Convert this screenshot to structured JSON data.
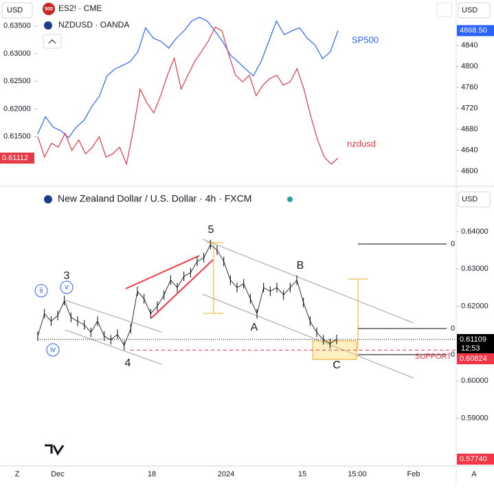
{
  "toolbar": {
    "top_left_currency": "USD",
    "top_right_currency": "USD",
    "bottom_right_currency": "USD",
    "bottom_left": "Z",
    "bottom_right": "A"
  },
  "chart_data": [
    {
      "type": "line",
      "legend": [
        {
          "badge": "500",
          "label": "ES2! · CME"
        },
        {
          "label": "NZDUSD · OANDA"
        }
      ],
      "series": [
        {
          "name": "SP500",
          "color": "#2962ff",
          "axis": "y2",
          "last": {
            "value": 4868.5,
            "label": "4868.50"
          },
          "values": [
            4671,
            4704,
            4684,
            4677,
            4664,
            4684,
            4697,
            4723,
            4743,
            4782,
            4795,
            4802,
            4809,
            4828,
            4874,
            4854,
            4848,
            4835,
            4854,
            4868,
            4887,
            4894,
            4887,
            4868,
            4848,
            4822,
            4809,
            4795,
            4782,
            4809,
            4848,
            4887,
            4861,
            4868,
            4874,
            4854,
            4841,
            4815,
            4828,
            4868.5
          ]
        },
        {
          "name": "nzdusd",
          "color": "#e53945",
          "axis": "y",
          "last": {
            "value": 0.61112,
            "label": "0.61112"
          },
          "values": [
            0.615,
            0.6113,
            0.6138,
            0.6131,
            0.6156,
            0.6125,
            0.6144,
            0.6119,
            0.6131,
            0.615,
            0.6113,
            0.6119,
            0.6131,
            0.61,
            0.6162,
            0.6236,
            0.6211,
            0.6193,
            0.6224,
            0.6261,
            0.6292,
            0.6236,
            0.6261,
            0.6286,
            0.6304,
            0.6323,
            0.6348,
            0.6341,
            0.6298,
            0.6261,
            0.6249,
            0.6261,
            0.6224,
            0.6243,
            0.6255,
            0.6261,
            0.6243,
            0.6249,
            0.6273,
            0.6236,
            0.6187,
            0.6144,
            0.6113,
            0.61,
            0.61112
          ]
        }
      ],
      "ylim": [
        0.6064,
        0.6397
      ],
      "yticks": [
        {
          "value": 0.635,
          "label": "0.63500"
        },
        {
          "value": 0.63,
          "label": "0.63000"
        },
        {
          "value": 0.625,
          "label": "0.62500"
        },
        {
          "value": 0.62,
          "label": "0.62000"
        },
        {
          "value": 0.615,
          "label": "0.61500"
        }
      ],
      "y2lim": [
        4575,
        4927
      ],
      "y2ticks": [
        4840,
        4800,
        4760,
        4720,
        4680,
        4640,
        4600
      ]
    },
    {
      "type": "bar-line",
      "title": "New Zealand Dollar / U.S. Dollar · 4h · FXCM",
      "color": "#000000",
      "values": [
        0.612,
        0.618,
        0.616,
        0.6175,
        0.6215,
        0.617,
        0.616,
        0.615,
        0.613,
        0.616,
        0.612,
        0.611,
        0.6125,
        0.6095,
        0.614,
        0.624,
        0.622,
        0.618,
        0.62,
        0.623,
        0.627,
        0.625,
        0.628,
        0.629,
        0.632,
        0.633,
        0.6365,
        0.635,
        0.632,
        0.627,
        0.625,
        0.626,
        0.622,
        0.618,
        0.625,
        0.624,
        0.625,
        0.623,
        0.625,
        0.627,
        0.621,
        0.616,
        0.613,
        0.611,
        0.61,
        0.6111
      ],
      "ylim": [
        0.5772,
        0.6514
      ],
      "yticks": [
        {
          "value": 0.64,
          "label": "0.64000"
        },
        {
          "value": 0.63,
          "label": "0.63000"
        },
        {
          "value": 0.62,
          "label": "0.62000"
        },
        {
          "value": 0.6,
          "label": "0.60000"
        },
        {
          "value": 0.59,
          "label": "0.59000"
        }
      ],
      "xticks": [
        "Dec",
        "18",
        "2024",
        "15",
        "15:00",
        "Feb"
      ],
      "price_tags": [
        {
          "value": 0.61109,
          "label": "0.61109",
          "sub": "12:53",
          "color": "#000000"
        },
        {
          "value": 0.60824,
          "label": "0.60824",
          "color": "#f23645"
        },
        {
          "value": 0.5774,
          "label": "0.57740",
          "color": "#f23645"
        }
      ],
      "support": {
        "value": 0.60824,
        "label": "SUPPORT"
      },
      "annotations": [
        "5",
        "3",
        "4",
        "A",
        "B",
        "C",
        "ii",
        "v",
        "iv",
        "0",
        "0",
        "0"
      ]
    }
  ]
}
